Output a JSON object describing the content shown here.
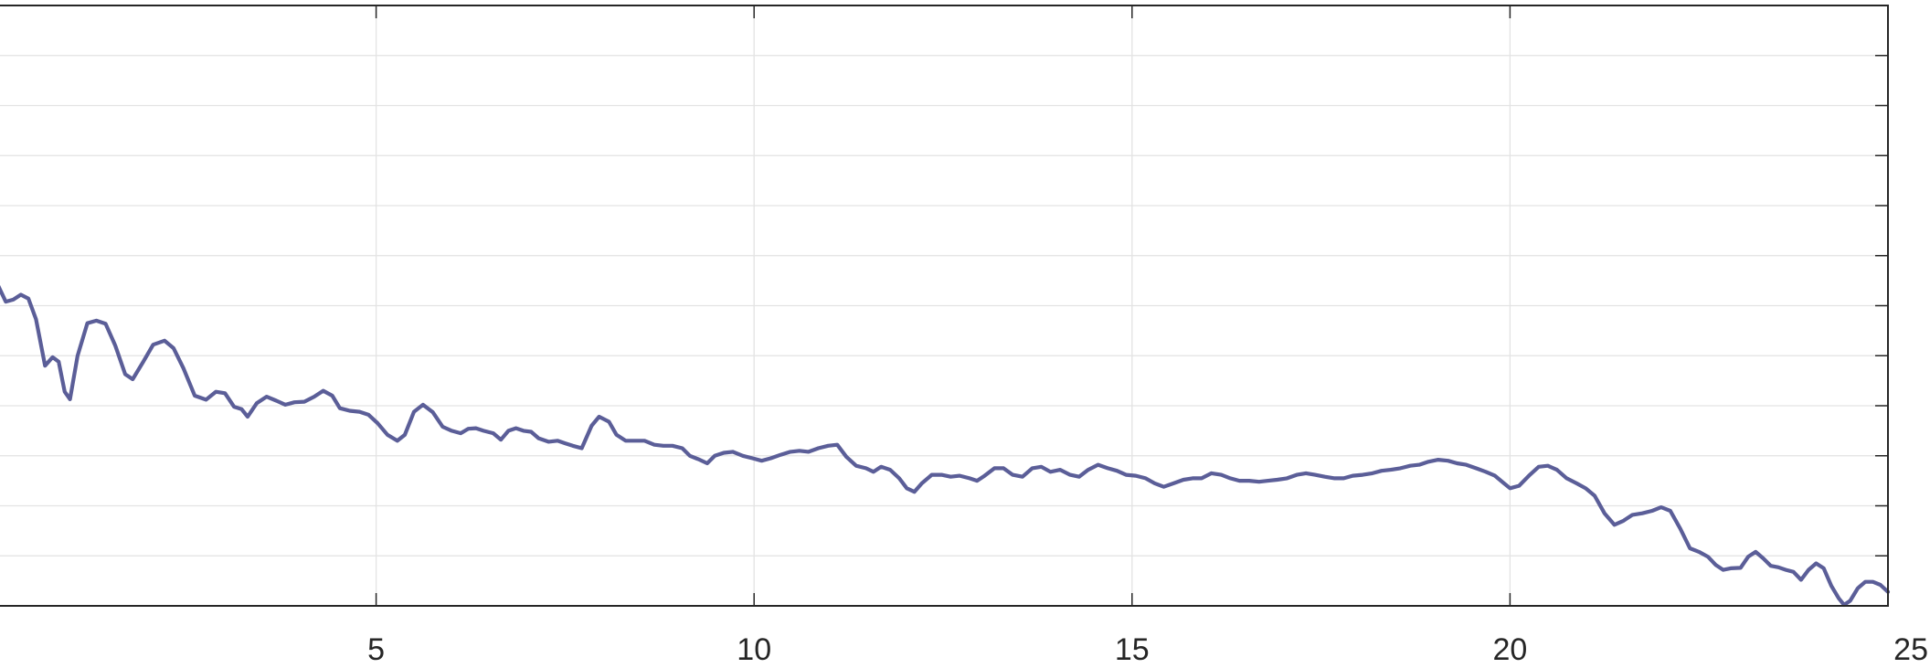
{
  "chart_data": {
    "type": "line",
    "title": "",
    "xlabel": "",
    "ylabel": "",
    "xlim": [
      0,
      25
    ],
    "ylim": [
      0,
      12
    ],
    "x_ticks": [
      5,
      10,
      15,
      20,
      25
    ],
    "x_tick_labels": [
      "5",
      "10",
      "15",
      "20",
      "25"
    ],
    "y_ticks": [
      1,
      2,
      3,
      4,
      5,
      6,
      7,
      8,
      9,
      10,
      11
    ],
    "grid": true,
    "series": [
      {
        "color": "#5b5e98",
        "points": [
          [
            0.0,
            6.4
          ],
          [
            0.1,
            6.08
          ],
          [
            0.2,
            6.12
          ],
          [
            0.3,
            6.22
          ],
          [
            0.4,
            6.14
          ],
          [
            0.5,
            5.73
          ],
          [
            0.62,
            4.8
          ],
          [
            0.72,
            4.97
          ],
          [
            0.8,
            4.88
          ],
          [
            0.88,
            4.28
          ],
          [
            0.95,
            4.13
          ],
          [
            1.05,
            5.0
          ],
          [
            1.18,
            5.65
          ],
          [
            1.3,
            5.7
          ],
          [
            1.42,
            5.64
          ],
          [
            1.55,
            5.2
          ],
          [
            1.68,
            4.63
          ],
          [
            1.78,
            4.53
          ],
          [
            1.92,
            4.88
          ],
          [
            2.05,
            5.22
          ],
          [
            2.2,
            5.3
          ],
          [
            2.32,
            5.15
          ],
          [
            2.45,
            4.75
          ],
          [
            2.6,
            4.2
          ],
          [
            2.75,
            4.12
          ],
          [
            2.88,
            4.28
          ],
          [
            3.0,
            4.25
          ],
          [
            3.12,
            3.98
          ],
          [
            3.22,
            3.93
          ],
          [
            3.3,
            3.78
          ],
          [
            3.42,
            4.05
          ],
          [
            3.55,
            4.18
          ],
          [
            3.68,
            4.1
          ],
          [
            3.8,
            4.02
          ],
          [
            3.92,
            4.07
          ],
          [
            4.05,
            4.08
          ],
          [
            4.18,
            4.18
          ],
          [
            4.3,
            4.3
          ],
          [
            4.42,
            4.2
          ],
          [
            4.52,
            3.95
          ],
          [
            4.65,
            3.9
          ],
          [
            4.78,
            3.88
          ],
          [
            4.9,
            3.82
          ],
          [
            5.02,
            3.65
          ],
          [
            5.15,
            3.42
          ],
          [
            5.28,
            3.3
          ],
          [
            5.38,
            3.42
          ],
          [
            5.5,
            3.88
          ],
          [
            5.62,
            4.02
          ],
          [
            5.75,
            3.87
          ],
          [
            5.88,
            3.58
          ],
          [
            6.0,
            3.5
          ],
          [
            6.12,
            3.45
          ],
          [
            6.22,
            3.54
          ],
          [
            6.32,
            3.55
          ],
          [
            6.42,
            3.5
          ],
          [
            6.55,
            3.45
          ],
          [
            6.65,
            3.32
          ],
          [
            6.75,
            3.5
          ],
          [
            6.85,
            3.55
          ],
          [
            6.95,
            3.5
          ],
          [
            7.05,
            3.48
          ],
          [
            7.15,
            3.35
          ],
          [
            7.28,
            3.28
          ],
          [
            7.4,
            3.3
          ],
          [
            7.5,
            3.25
          ],
          [
            7.6,
            3.2
          ],
          [
            7.72,
            3.15
          ],
          [
            7.85,
            3.6
          ],
          [
            7.95,
            3.78
          ],
          [
            8.08,
            3.68
          ],
          [
            8.18,
            3.42
          ],
          [
            8.3,
            3.3
          ],
          [
            8.42,
            3.3
          ],
          [
            8.55,
            3.3
          ],
          [
            8.68,
            3.22
          ],
          [
            8.8,
            3.2
          ],
          [
            8.92,
            3.2
          ],
          [
            9.05,
            3.15
          ],
          [
            9.15,
            3.0
          ],
          [
            9.28,
            2.92
          ],
          [
            9.38,
            2.85
          ],
          [
            9.48,
            3.0
          ],
          [
            9.6,
            3.06
          ],
          [
            9.72,
            3.08
          ],
          [
            9.85,
            3.0
          ],
          [
            9.98,
            2.95
          ],
          [
            10.1,
            2.9
          ],
          [
            10.22,
            2.95
          ],
          [
            10.35,
            3.02
          ],
          [
            10.48,
            3.08
          ],
          [
            10.6,
            3.1
          ],
          [
            10.72,
            3.08
          ],
          [
            10.85,
            3.15
          ],
          [
            10.98,
            3.2
          ],
          [
            11.1,
            3.22
          ],
          [
            11.22,
            2.98
          ],
          [
            11.35,
            2.8
          ],
          [
            11.48,
            2.75
          ],
          [
            11.58,
            2.68
          ],
          [
            11.68,
            2.78
          ],
          [
            11.8,
            2.72
          ],
          [
            11.92,
            2.55
          ],
          [
            12.02,
            2.35
          ],
          [
            12.12,
            2.28
          ],
          [
            12.22,
            2.45
          ],
          [
            12.35,
            2.62
          ],
          [
            12.48,
            2.62
          ],
          [
            12.6,
            2.58
          ],
          [
            12.72,
            2.6
          ],
          [
            12.85,
            2.55
          ],
          [
            12.95,
            2.5
          ],
          [
            13.05,
            2.6
          ],
          [
            13.18,
            2.75
          ],
          [
            13.3,
            2.75
          ],
          [
            13.42,
            2.62
          ],
          [
            13.55,
            2.58
          ],
          [
            13.68,
            2.75
          ],
          [
            13.8,
            2.78
          ],
          [
            13.92,
            2.68
          ],
          [
            14.05,
            2.72
          ],
          [
            14.18,
            2.62
          ],
          [
            14.3,
            2.58
          ],
          [
            14.42,
            2.72
          ],
          [
            14.55,
            2.82
          ],
          [
            14.68,
            2.75
          ],
          [
            14.8,
            2.7
          ],
          [
            14.92,
            2.62
          ],
          [
            15.05,
            2.6
          ],
          [
            15.18,
            2.55
          ],
          [
            15.3,
            2.45
          ],
          [
            15.42,
            2.38
          ],
          [
            15.55,
            2.45
          ],
          [
            15.68,
            2.52
          ],
          [
            15.8,
            2.55
          ],
          [
            15.92,
            2.55
          ],
          [
            16.05,
            2.65
          ],
          [
            16.18,
            2.62
          ],
          [
            16.3,
            2.55
          ],
          [
            16.42,
            2.5
          ],
          [
            16.55,
            2.5
          ],
          [
            16.68,
            2.48
          ],
          [
            16.8,
            2.5
          ],
          [
            16.92,
            2.52
          ],
          [
            17.05,
            2.55
          ],
          [
            17.18,
            2.62
          ],
          [
            17.3,
            2.65
          ],
          [
            17.42,
            2.62
          ],
          [
            17.55,
            2.58
          ],
          [
            17.68,
            2.55
          ],
          [
            17.8,
            2.55
          ],
          [
            17.92,
            2.6
          ],
          [
            18.05,
            2.62
          ],
          [
            18.18,
            2.65
          ],
          [
            18.3,
            2.7
          ],
          [
            18.42,
            2.72
          ],
          [
            18.55,
            2.75
          ],
          [
            18.68,
            2.8
          ],
          [
            18.8,
            2.82
          ],
          [
            18.92,
            2.88
          ],
          [
            19.05,
            2.92
          ],
          [
            19.18,
            2.9
          ],
          [
            19.3,
            2.85
          ],
          [
            19.42,
            2.82
          ],
          [
            19.55,
            2.75
          ],
          [
            19.68,
            2.68
          ],
          [
            19.8,
            2.6
          ],
          [
            19.92,
            2.45
          ],
          [
            20.0,
            2.35
          ],
          [
            20.12,
            2.4
          ],
          [
            20.25,
            2.6
          ],
          [
            20.38,
            2.78
          ],
          [
            20.5,
            2.8
          ],
          [
            20.62,
            2.72
          ],
          [
            20.75,
            2.55
          ],
          [
            20.88,
            2.45
          ],
          [
            21.0,
            2.35
          ],
          [
            21.12,
            2.2
          ],
          [
            21.25,
            1.85
          ],
          [
            21.38,
            1.62
          ],
          [
            21.5,
            1.7
          ],
          [
            21.62,
            1.82
          ],
          [
            21.75,
            1.85
          ],
          [
            21.88,
            1.9
          ],
          [
            22.0,
            1.97
          ],
          [
            22.12,
            1.9
          ],
          [
            22.25,
            1.55
          ],
          [
            22.38,
            1.15
          ],
          [
            22.5,
            1.08
          ],
          [
            22.62,
            0.98
          ],
          [
            22.72,
            0.82
          ],
          [
            22.82,
            0.72
          ],
          [
            22.92,
            0.75
          ],
          [
            23.05,
            0.76
          ],
          [
            23.15,
            0.98
          ],
          [
            23.25,
            1.08
          ],
          [
            23.35,
            0.95
          ],
          [
            23.45,
            0.8
          ],
          [
            23.55,
            0.77
          ],
          [
            23.65,
            0.72
          ],
          [
            23.75,
            0.68
          ],
          [
            23.85,
            0.52
          ],
          [
            23.95,
            0.72
          ],
          [
            24.05,
            0.85
          ],
          [
            24.15,
            0.75
          ],
          [
            24.25,
            0.4
          ],
          [
            24.35,
            0.15
          ],
          [
            24.42,
            0.02
          ],
          [
            24.5,
            0.1
          ],
          [
            24.6,
            0.35
          ],
          [
            24.7,
            0.48
          ],
          [
            24.8,
            0.48
          ],
          [
            24.9,
            0.42
          ],
          [
            25.0,
            0.28
          ]
        ]
      }
    ]
  }
}
